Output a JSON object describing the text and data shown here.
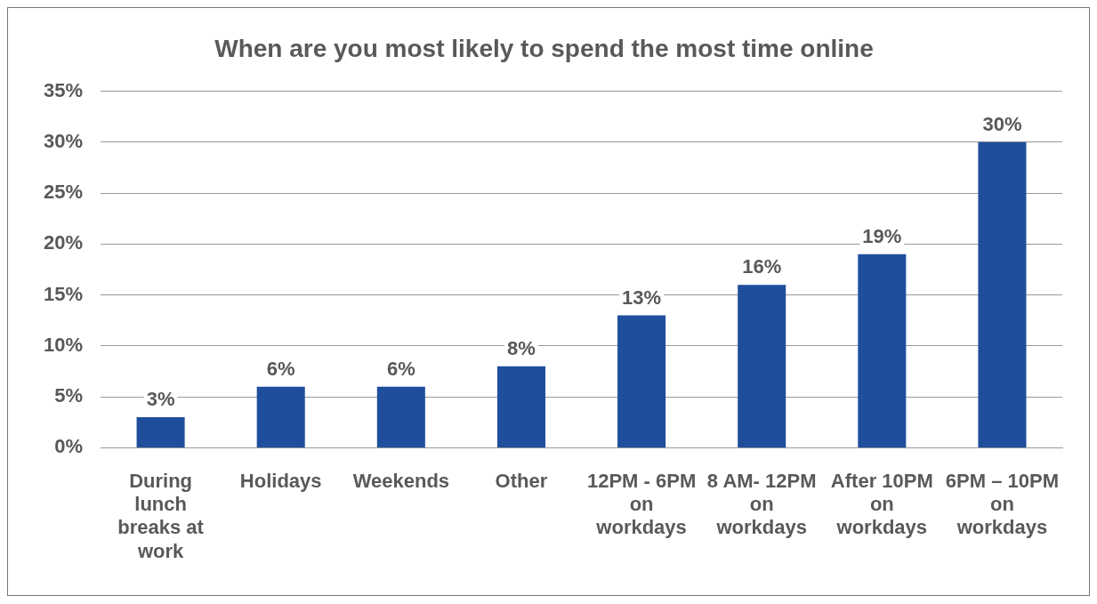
{
  "chart_data": {
    "type": "bar",
    "title": "When are you most likely to spend the most time online",
    "categories": [
      "During lunch breaks at work",
      "Holidays",
      "Weekends",
      "Other",
      "12PM - 6PM on workdays",
      "8 AM- 12PM on workdays",
      "After 10PM on workdays",
      "6PM – 10PM on workdays"
    ],
    "values": [
      3,
      6,
      6,
      8,
      13,
      16,
      19,
      30
    ],
    "value_labels": [
      "3%",
      "6%",
      "6%",
      "8%",
      "13%",
      "16%",
      "19%",
      "30%"
    ],
    "color": "#1f4e9c",
    "ylim": [
      0,
      35
    ],
    "yticks": [
      {
        "value": 0,
        "label": "0%"
      },
      {
        "value": 5,
        "label": "5%"
      },
      {
        "value": 10,
        "label": "10%"
      },
      {
        "value": 15,
        "label": "15%"
      },
      {
        "value": 20,
        "label": "20%"
      },
      {
        "value": 25,
        "label": "25%"
      },
      {
        "value": 30,
        "label": "30%"
      },
      {
        "value": 35,
        "label": "35%"
      }
    ],
    "grid": "y",
    "legend": false
  }
}
